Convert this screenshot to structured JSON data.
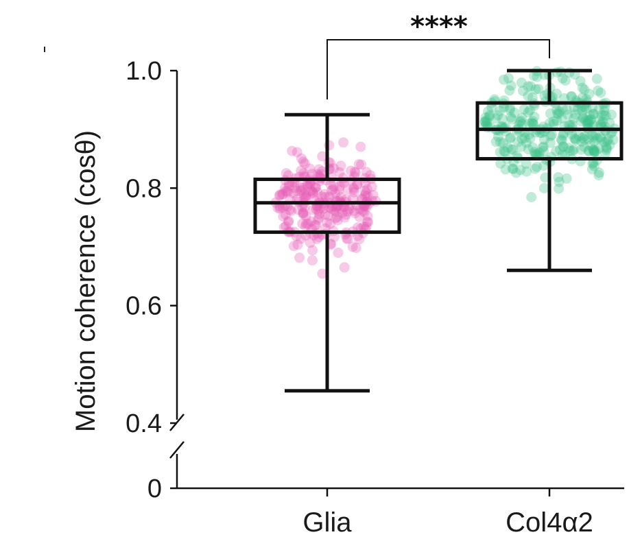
{
  "chart_data": {
    "type": "box",
    "title": "",
    "xlabel": "",
    "ylabel": "Motion coherence (cosθ)",
    "ylim": [
      0,
      1.0
    ],
    "axis_break": [
      0.05,
      0.4
    ],
    "yticks": [
      {
        "value": 0,
        "label": "0"
      },
      {
        "value": 0.4,
        "label": "0.4"
      },
      {
        "value": 0.6,
        "label": "0.6"
      },
      {
        "value": 0.8,
        "label": "0.8"
      },
      {
        "value": 1.0,
        "label": "1.0"
      }
    ],
    "categories": [
      "Glia",
      "Col4α2"
    ],
    "boxes": [
      {
        "name": "Glia",
        "color": "#e55ab4",
        "min": 0.455,
        "q1": 0.725,
        "median": 0.775,
        "q3": 0.815,
        "max": 0.925,
        "n_points": 260,
        "spread": 0.72
      },
      {
        "name": "Col4α2",
        "color": "#3cc28a",
        "min": 0.66,
        "q1": 0.85,
        "median": 0.9,
        "q3": 0.945,
        "max": 1.0,
        "n_points": 300,
        "spread": 0.95
      }
    ],
    "significance": {
      "label": "****",
      "from": "Glia",
      "to": "Col4α2"
    }
  }
}
